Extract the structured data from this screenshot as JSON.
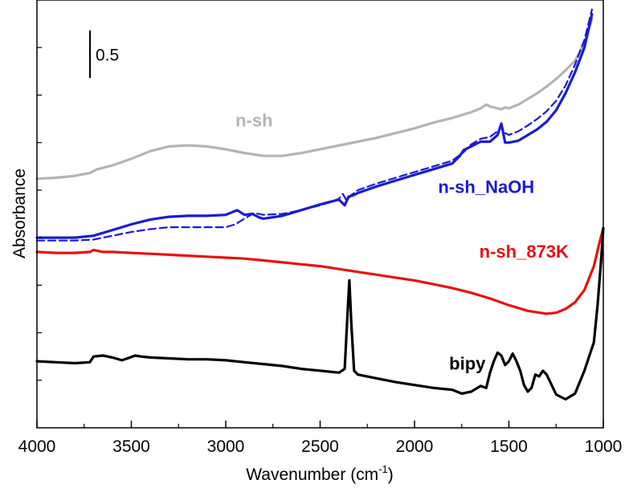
{
  "chart_data": {
    "type": "line",
    "title": "",
    "xlabel": "Wavenumber (cm-1)",
    "xlabel_parts": {
      "main": "Wavenumber (cm",
      "sup": "-1",
      "close": ")"
    },
    "ylabel": "Absorbance",
    "xlim": [
      4000,
      1000
    ],
    "x_reversed": true,
    "ylim": [
      0,
      4.5
    ],
    "y_ticklabels_shown": false,
    "grid": false,
    "x_ticks": [
      4000,
      3500,
      3000,
      2500,
      2000,
      1500,
      1000
    ],
    "x_ticklabels": [
      "4000",
      "3500",
      "3000",
      "2500",
      "2000",
      "1500",
      "1000"
    ],
    "scale_bar": {
      "label": "0.5",
      "value": 0.5,
      "y_bottom": 3.68
    },
    "series": [
      {
        "name": "n-sh",
        "color": "#b4b4b4",
        "line_style": "solid",
        "label_anchor": {
          "x": 2850,
          "y": 3.17
        },
        "x": [
          4000,
          3900,
          3800,
          3720,
          3680,
          3600,
          3500,
          3400,
          3300,
          3200,
          3100,
          3000,
          2900,
          2800,
          2700,
          2600,
          2500,
          2400,
          2300,
          2200,
          2100,
          2000,
          1900,
          1800,
          1700,
          1650,
          1620,
          1600,
          1560,
          1540,
          1520,
          1500,
          1450,
          1400,
          1350,
          1300,
          1250,
          1200,
          1150,
          1100,
          1060
        ],
        "y": [
          2.62,
          2.63,
          2.65,
          2.68,
          2.72,
          2.76,
          2.83,
          2.91,
          2.96,
          2.97,
          2.96,
          2.93,
          2.89,
          2.86,
          2.86,
          2.89,
          2.93,
          2.97,
          3.01,
          3.05,
          3.1,
          3.15,
          3.21,
          3.26,
          3.32,
          3.36,
          3.4,
          3.38,
          3.36,
          3.35,
          3.37,
          3.36,
          3.4,
          3.46,
          3.52,
          3.59,
          3.67,
          3.76,
          3.86,
          4.05,
          4.3
        ]
      },
      {
        "name": "n-sh_NaOH",
        "color": "#1a1ad4",
        "line_style": "solid",
        "label_anchor": {
          "x": 1620,
          "y": 2.47
        },
        "x": [
          4000,
          3800,
          3700,
          3600,
          3500,
          3400,
          3300,
          3200,
          3100,
          3000,
          2940,
          2900,
          2860,
          2820,
          2800,
          2700,
          2600,
          2500,
          2400,
          2370,
          2350,
          2320,
          2300,
          2200,
          2100,
          2000,
          1900,
          1800,
          1760,
          1740,
          1700,
          1650,
          1600,
          1560,
          1540,
          1520,
          1500,
          1450,
          1400,
          1350,
          1300,
          1250,
          1200,
          1150,
          1100,
          1060
        ],
        "y": [
          2.0,
          2.0,
          2.02,
          2.08,
          2.14,
          2.19,
          2.22,
          2.23,
          2.23,
          2.24,
          2.29,
          2.24,
          2.25,
          2.21,
          2.2,
          2.23,
          2.29,
          2.35,
          2.4,
          2.34,
          2.43,
          2.45,
          2.47,
          2.54,
          2.6,
          2.66,
          2.72,
          2.78,
          2.86,
          2.92,
          2.96,
          3.01,
          3.01,
          3.08,
          3.2,
          3.0,
          3.0,
          3.02,
          3.08,
          3.14,
          3.22,
          3.34,
          3.52,
          3.74,
          4.0,
          4.35
        ]
      },
      {
        "name": "n-sh_NaOH dashed",
        "color": "#1a1ad4",
        "line_style": "dashed",
        "x": [
          4000,
          3800,
          3700,
          3600,
          3500,
          3400,
          3300,
          3200,
          3100,
          3000,
          2950,
          2900,
          2850,
          2800,
          2700,
          2600,
          2500,
          2450,
          2400,
          2380,
          2360,
          2340,
          2300,
          2200,
          2100,
          2000,
          1900,
          1800,
          1740,
          1700,
          1650,
          1600,
          1560,
          1540,
          1520,
          1500,
          1450,
          1400,
          1350,
          1300,
          1250,
          1200,
          1150,
          1100,
          1060
        ],
        "y": [
          1.97,
          1.97,
          1.98,
          2.02,
          2.06,
          2.09,
          2.11,
          2.11,
          2.11,
          2.11,
          2.14,
          2.2,
          2.26,
          2.24,
          2.25,
          2.29,
          2.34,
          2.37,
          2.41,
          2.46,
          2.39,
          2.44,
          2.5,
          2.57,
          2.63,
          2.69,
          2.75,
          2.81,
          2.9,
          2.98,
          3.04,
          3.06,
          3.12,
          3.17,
          3.1,
          3.08,
          3.12,
          3.18,
          3.25,
          3.33,
          3.44,
          3.6,
          3.82,
          4.08,
          4.4
        ]
      },
      {
        "name": "n-sh_873K",
        "color": "#e81010",
        "line_style": "solid",
        "label_anchor": {
          "x": 1420,
          "y": 1.79
        },
        "x": [
          4000,
          3900,
          3800,
          3720,
          3700,
          3650,
          3600,
          3500,
          3400,
          3300,
          3200,
          3100,
          3000,
          2900,
          2800,
          2700,
          2600,
          2500,
          2400,
          2300,
          2200,
          2100,
          2000,
          1900,
          1800,
          1700,
          1600,
          1500,
          1400,
          1300,
          1250,
          1200,
          1150,
          1100,
          1050,
          1020,
          1000
        ],
        "y": [
          1.85,
          1.84,
          1.84,
          1.85,
          1.87,
          1.85,
          1.85,
          1.84,
          1.83,
          1.82,
          1.81,
          1.8,
          1.79,
          1.78,
          1.76,
          1.74,
          1.72,
          1.7,
          1.67,
          1.64,
          1.61,
          1.58,
          1.55,
          1.51,
          1.47,
          1.42,
          1.36,
          1.29,
          1.23,
          1.2,
          1.21,
          1.25,
          1.32,
          1.45,
          1.7,
          1.95,
          2.1
        ]
      },
      {
        "name": "bipy",
        "color": "#000000",
        "line_style": "solid",
        "label_anchor": {
          "x": 1720,
          "y": 0.61
        },
        "x": [
          4000,
          3900,
          3800,
          3720,
          3700,
          3650,
          3600,
          3550,
          3520,
          3480,
          3450,
          3400,
          3300,
          3200,
          3100,
          3000,
          2900,
          2800,
          2700,
          2600,
          2500,
          2400,
          2370,
          2355,
          2345,
          2335,
          2320,
          2300,
          2200,
          2100,
          2000,
          1900,
          1800,
          1750,
          1700,
          1650,
          1620,
          1600,
          1580,
          1560,
          1540,
          1520,
          1500,
          1480,
          1460,
          1440,
          1420,
          1400,
          1380,
          1360,
          1340,
          1320,
          1300,
          1250,
          1200,
          1150,
          1100,
          1080,
          1050,
          1030,
          1010,
          1000
        ],
        "y": [
          0.7,
          0.69,
          0.68,
          0.69,
          0.75,
          0.76,
          0.74,
          0.71,
          0.73,
          0.76,
          0.75,
          0.74,
          0.73,
          0.72,
          0.72,
          0.71,
          0.69,
          0.67,
          0.65,
          0.62,
          0.6,
          0.58,
          0.62,
          1.2,
          1.55,
          1.1,
          0.6,
          0.56,
          0.52,
          0.48,
          0.45,
          0.42,
          0.4,
          0.36,
          0.38,
          0.44,
          0.42,
          0.58,
          0.7,
          0.79,
          0.76,
          0.66,
          0.7,
          0.78,
          0.7,
          0.6,
          0.45,
          0.38,
          0.42,
          0.56,
          0.54,
          0.6,
          0.56,
          0.35,
          0.3,
          0.36,
          0.6,
          0.72,
          0.9,
          1.3,
          1.8,
          2.1
        ]
      }
    ]
  }
}
